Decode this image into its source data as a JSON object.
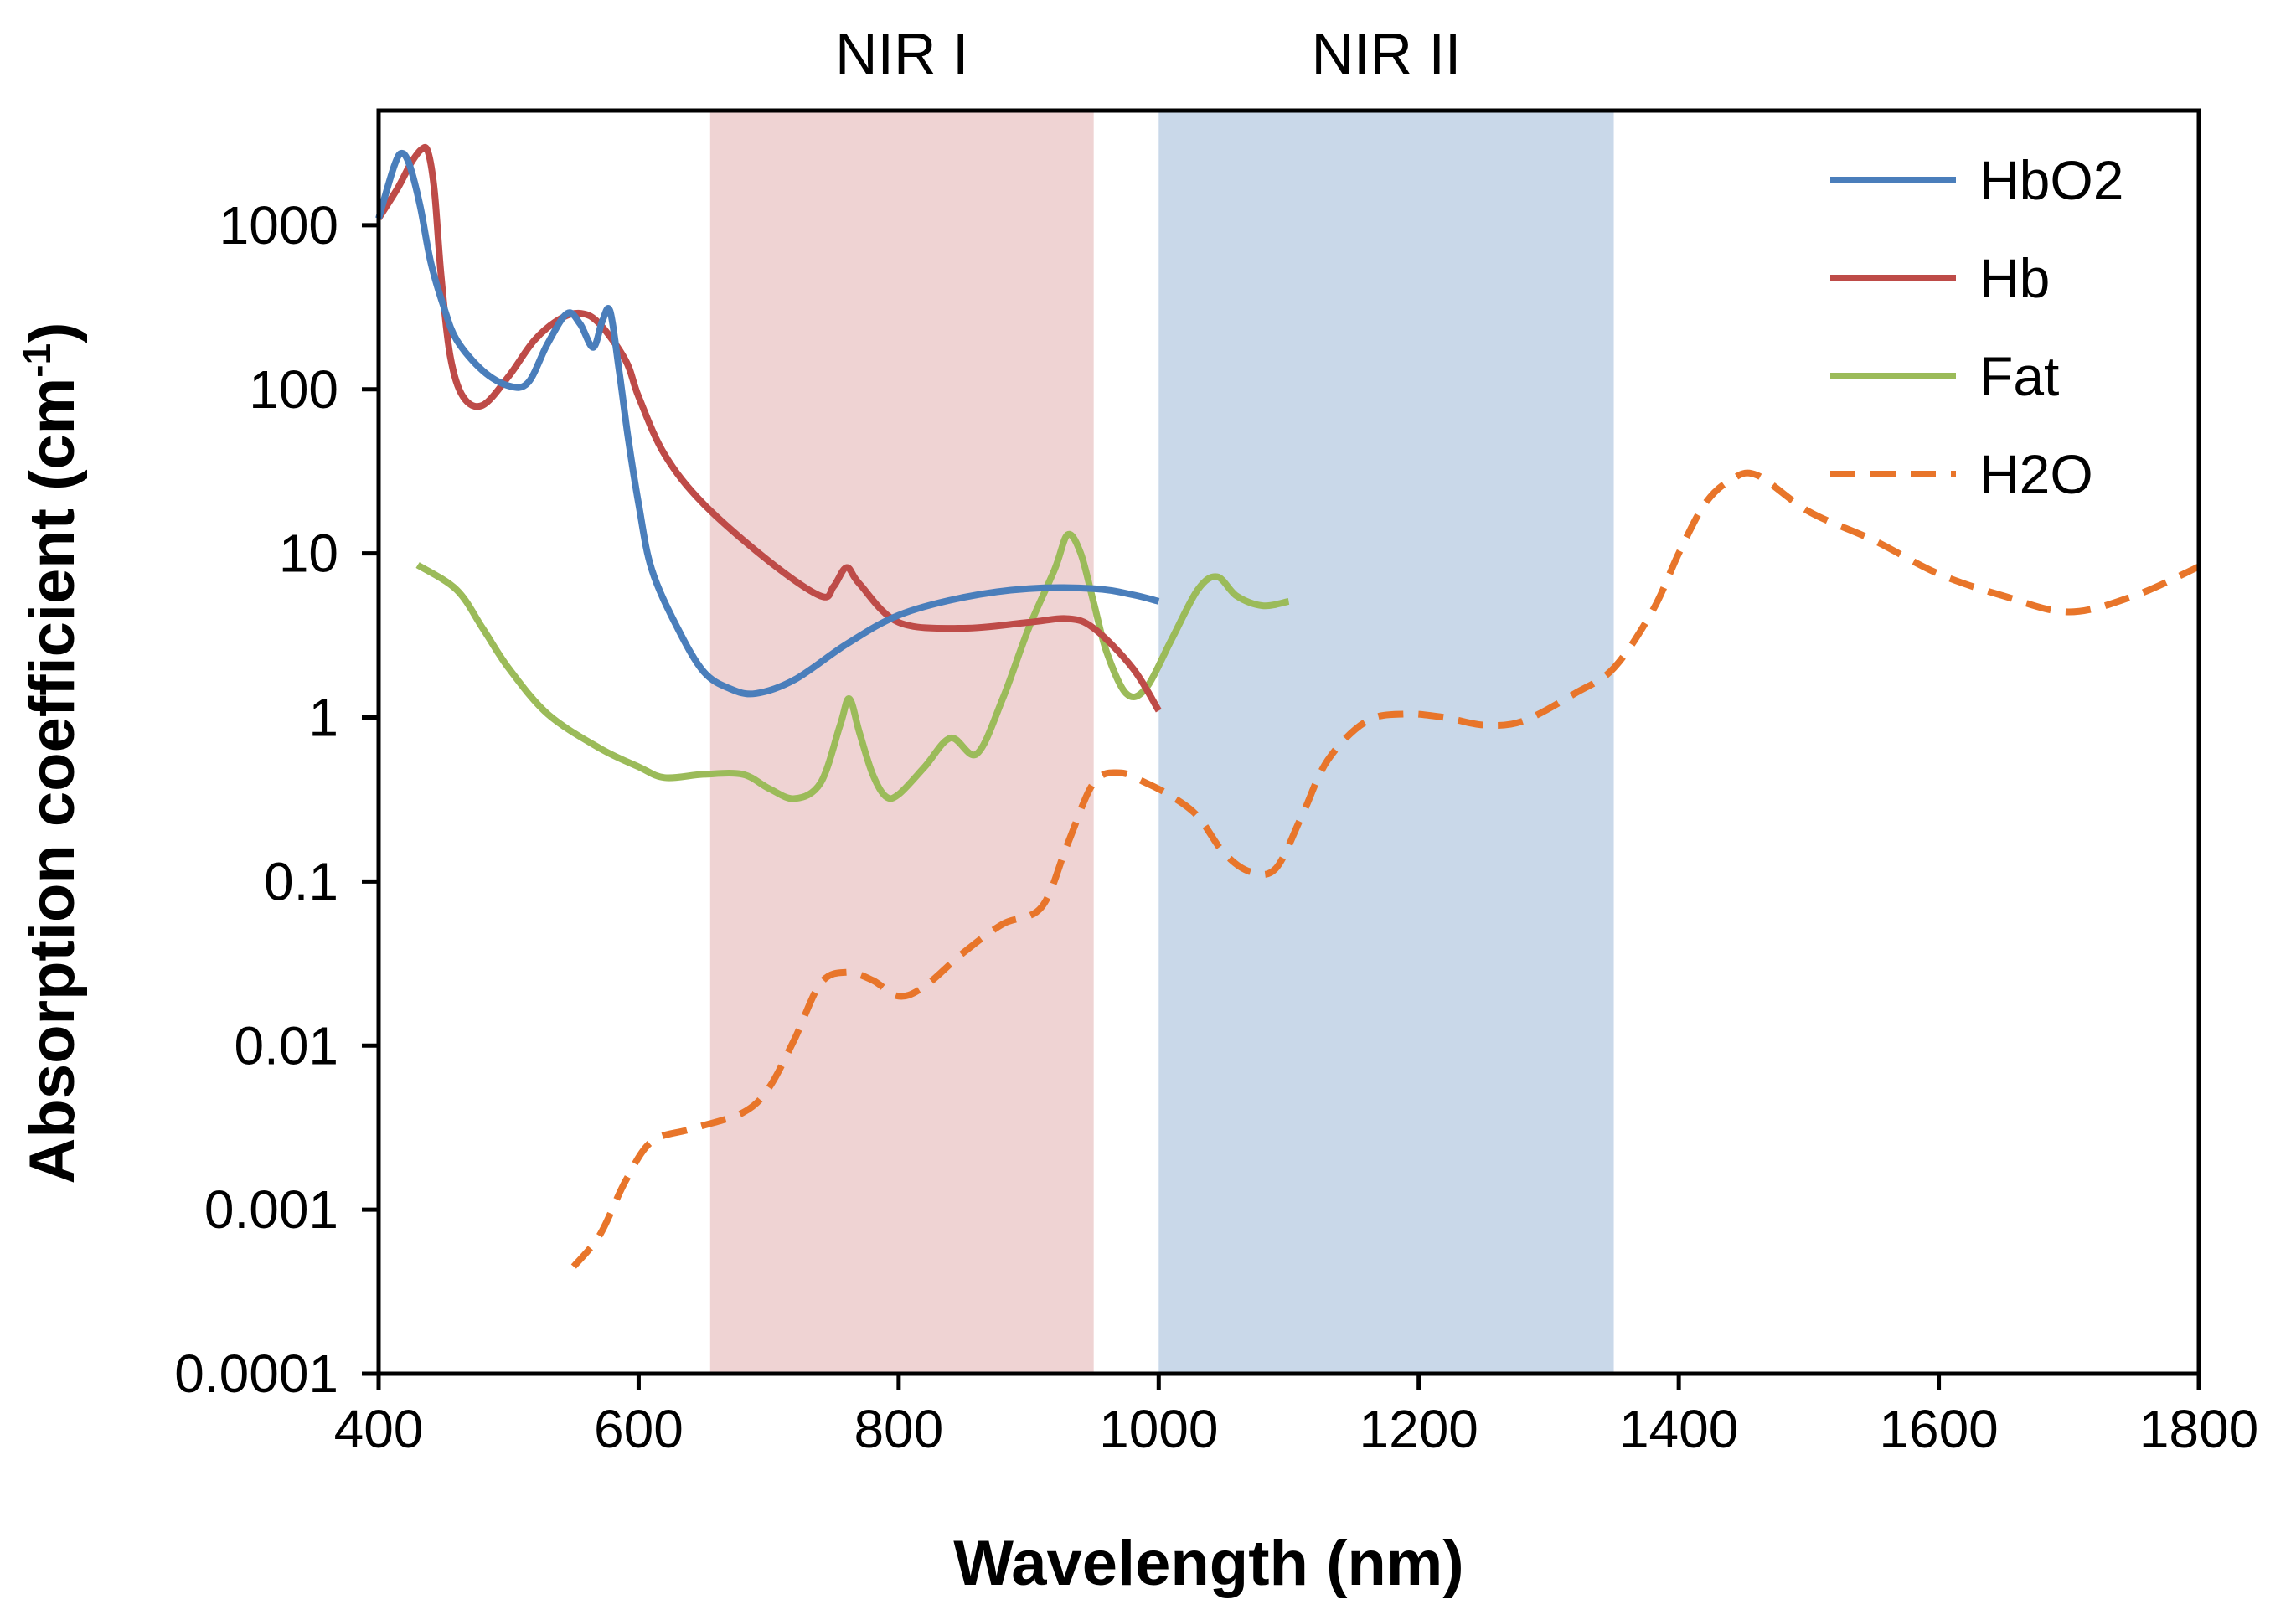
{
  "chart_data": {
    "type": "line",
    "title": "",
    "xlabel": "Wavelength (nm)",
    "ylabel": "Absorption coefficient (cm",
    "ylabel_unit_sup": "-1",
    "ylabel_close": ")",
    "xscale": "linear",
    "yscale": "log",
    "xlim": [
      400,
      1800
    ],
    "ylim": [
      0.0001,
      5000
    ],
    "xticks": [
      400,
      600,
      800,
      1000,
      1200,
      1400,
      1600,
      1800
    ],
    "xtick_labels": [
      "400",
      "600",
      "800",
      "1000",
      "1200",
      "1400",
      "1600",
      "1800"
    ],
    "yticks": [
      0.0001,
      0.001,
      0.01,
      0.1,
      1,
      10,
      100,
      1000
    ],
    "ytick_labels": [
      "0.0001",
      "0.001",
      "0.01",
      "0.1",
      "1",
      "10",
      "100",
      "1000"
    ],
    "grid": false,
    "legend_position": "top-right",
    "bands": [
      {
        "label": "NIR I",
        "range": [
          655,
          950
        ],
        "color": "#efd3d3"
      },
      {
        "label": "NIR II",
        "range": [
          1000,
          1350
        ],
        "color": "#c9d8e9"
      }
    ],
    "series": [
      {
        "name": "HbO2",
        "color": "#4a7ebb",
        "dash": false,
        "x": [
          400,
          412,
          418,
          424,
          432,
          440,
          450,
          460,
          480,
          500,
          515,
          530,
          545,
          555,
          565,
          572,
          578,
          585,
          592,
          600,
          610,
          630,
          650,
          670,
          690,
          720,
          760,
          800,
          850,
          900,
          950,
          980,
          1000
        ],
        "y": [
          1100,
          2300,
          2750,
          2300,
          1300,
          600,
          320,
          200,
          130,
          105,
          110,
          190,
          290,
          250,
          180,
          260,
          300,
          130,
          50,
          20,
          8,
          3.5,
          1.9,
          1.5,
          1.4,
          1.7,
          2.8,
          4.2,
          5.4,
          6.1,
          6.1,
          5.6,
          5.1
        ]
      },
      {
        "name": "Hb",
        "color": "#be4b48",
        "dash": false,
        "x": [
          400,
          415,
          425,
          433,
          438,
          443,
          448,
          455,
          465,
          480,
          500,
          520,
          540,
          556,
          570,
          590,
          600,
          620,
          650,
          700,
          740,
          750,
          760,
          770,
          800,
          850,
          900,
          930,
          950,
          980,
          1000
        ],
        "y": [
          1100,
          1700,
          2400,
          2900,
          2800,
          1600,
          500,
          160,
          90,
          80,
          120,
          200,
          270,
          290,
          250,
          150,
          90,
          40,
          20,
          9,
          5.5,
          6.3,
          8.2,
          6.5,
          3.8,
          3.5,
          3.8,
          4,
          3.5,
          2,
          1.1
        ]
      },
      {
        "name": "Fat",
        "color": "#9bbb59",
        "dash": false,
        "x": [
          430,
          460,
          480,
          500,
          530,
          570,
          600,
          620,
          650,
          680,
          700,
          720,
          740,
          755,
          762,
          770,
          780,
          790,
          800,
          820,
          840,
          860,
          880,
          900,
          920,
          930,
          940,
          950,
          960,
          975,
          990,
          1010,
          1030,
          1045,
          1060,
          1080,
          1100
        ],
        "y": [
          8.5,
          6,
          3.5,
          2,
          1.05,
          0.65,
          0.5,
          0.43,
          0.45,
          0.45,
          0.37,
          0.32,
          0.4,
          0.9,
          1.3,
          0.8,
          0.45,
          0.33,
          0.34,
          0.5,
          0.75,
          0.6,
          1.3,
          3.5,
          8,
          13,
          10,
          5,
          2.5,
          1.4,
          1.5,
          3,
          6,
          7.2,
          5.5,
          4.8,
          5.1
        ]
      },
      {
        "name": "H2O",
        "color": "#e8752a",
        "dash": true,
        "x": [
          550,
          570,
          590,
          610,
          640,
          680,
          700,
          720,
          740,
          760,
          780,
          800,
          820,
          850,
          880,
          910,
          930,
          950,
          970,
          990,
          1010,
          1030,
          1050,
          1070,
          1090,
          1110,
          1130,
          1160,
          1190,
          1220,
          1250,
          1280,
          1320,
          1350,
          1380,
          1400,
          1420,
          1440,
          1460,
          1500,
          1550,
          1600,
          1650,
          1700,
          1750,
          1800
        ],
        "y": [
          0.00045,
          0.0007,
          0.0015,
          0.0026,
          0.0031,
          0.0039,
          0.0055,
          0.011,
          0.024,
          0.028,
          0.025,
          0.02,
          0.023,
          0.037,
          0.055,
          0.07,
          0.17,
          0.4,
          0.46,
          0.4,
          0.33,
          0.25,
          0.15,
          0.115,
          0.12,
          0.25,
          0.55,
          0.95,
          1.05,
          1.0,
          0.9,
          0.95,
          1.4,
          2.0,
          4.5,
          10,
          20,
          28,
          30,
          18,
          12,
          7.5,
          5.5,
          4.4,
          5.5,
          8.3
        ]
      }
    ]
  }
}
